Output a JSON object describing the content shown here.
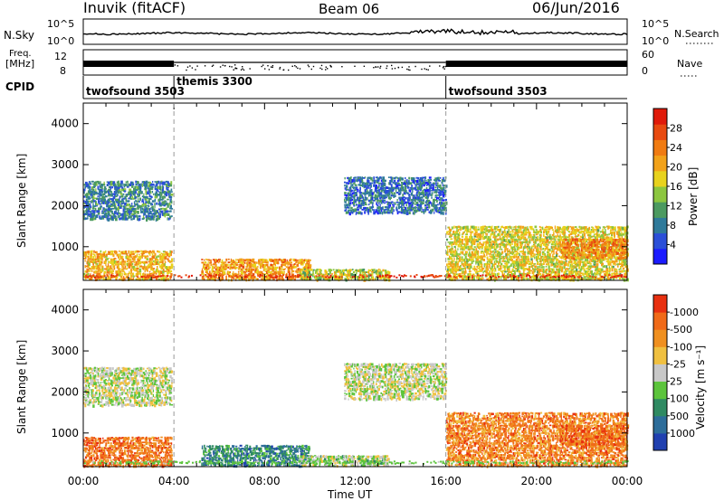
{
  "header": {
    "station": "Inuvik (fitACF)",
    "beam": "Beam 06",
    "date": "06/Jun/2016"
  },
  "strip_panels": {
    "nsky_label": "N.Sky",
    "nsky_ticks": [
      "10^5",
      "10^0"
    ],
    "nsearch_label": "N.Search",
    "nsearch_ticks": [
      "10^5",
      "10^0"
    ],
    "freq_label_top": "Freq.",
    "freq_label_bottom": "[MHz]",
    "freq_ticks": [
      "12",
      "8"
    ],
    "nave_label": "Nave",
    "nave_ticks": [
      "60",
      "0"
    ],
    "cpid_label": "CPID",
    "cpid_segments": [
      {
        "name": "twofsound 3503",
        "start_hour": 0,
        "end_hour": 4
      },
      {
        "name": "themis 3300",
        "start_hour": 4,
        "end_hour": 16
      },
      {
        "name": "twofsound 3503",
        "start_hour": 16,
        "end_hour": 24
      }
    ]
  },
  "chart_data": [
    {
      "type": "heatmap",
      "title": "Power",
      "xlabel": "Time UT",
      "ylabel": "Slant Range [km]",
      "x_tick_labels": [
        "00:00",
        "04:00",
        "08:00",
        "12:00",
        "16:00",
        "20:00",
        "00:00"
      ],
      "x_range_hours": [
        0,
        24
      ],
      "y_tick_labels": [
        "1000",
        "2000",
        "3000",
        "4000"
      ],
      "y_range_km": [
        180,
        4500
      ],
      "colorbar": {
        "label": "Power [dB]",
        "ticks": [
          "4",
          "8",
          "12",
          "16",
          "20",
          "24",
          "28"
        ],
        "colors": [
          "#1b1bff",
          "#2b4fd8",
          "#2f7a9a",
          "#4c9a60",
          "#8cc63f",
          "#e8d21d",
          "#f2a21a",
          "#f07b12",
          "#e84a10",
          "#e01a0a"
        ]
      },
      "echo_regions": [
        {
          "t0": 0.0,
          "t1": 3.9,
          "r0": 1650,
          "r1": 2600,
          "level": 0.25
        },
        {
          "t0": 0.0,
          "t1": 3.9,
          "r0": 180,
          "r1": 900,
          "level": 0.65
        },
        {
          "t0": 5.2,
          "t1": 10.0,
          "r0": 180,
          "r1": 700,
          "level": 0.7
        },
        {
          "t0": 9.5,
          "t1": 13.5,
          "r0": 180,
          "r1": 450,
          "level": 0.5
        },
        {
          "t0": 11.5,
          "t1": 16.0,
          "r0": 1800,
          "r1": 2700,
          "level": 0.2
        },
        {
          "t0": 16.0,
          "t1": 24.0,
          "r0": 180,
          "r1": 1500,
          "level": 0.55
        },
        {
          "t0": 21.0,
          "t1": 24.0,
          "r0": 700,
          "r1": 1200,
          "level": 0.75
        }
      ]
    },
    {
      "type": "heatmap",
      "title": "Velocity",
      "xlabel": "Time UT",
      "ylabel": "Slant Range [km]",
      "x_tick_labels": [
        "00:00",
        "04:00",
        "08:00",
        "12:00",
        "16:00",
        "20:00",
        "00:00"
      ],
      "x_range_hours": [
        0,
        24
      ],
      "y_tick_labels": [
        "1000",
        "2000",
        "3000",
        "4000"
      ],
      "y_range_km": [
        180,
        4500
      ],
      "colorbar": {
        "label": "Velocity [m s⁻¹]",
        "ticks": [
          "1000",
          "500",
          "100",
          "25",
          "-25",
          "-100",
          "-500",
          "-1000"
        ],
        "colors": [
          "#2040b0",
          "#2d6d9a",
          "#2f8a62",
          "#5cc43c",
          "#c8c8c8",
          "#f0c040",
          "#f09020",
          "#f06a18",
          "#e83010"
        ]
      },
      "echo_regions": [
        {
          "t0": 0.0,
          "t1": 3.9,
          "r0": 1650,
          "r1": 2600,
          "level": 0.5
        },
        {
          "t0": 0.0,
          "t1": 3.9,
          "r0": 180,
          "r1": 900,
          "level": 0.85
        },
        {
          "t0": 5.2,
          "t1": 10.0,
          "r0": 180,
          "r1": 700,
          "level": 0.2
        },
        {
          "t0": 9.5,
          "t1": 13.5,
          "r0": 180,
          "r1": 450,
          "level": 0.45
        },
        {
          "t0": 11.5,
          "t1": 16.0,
          "r0": 1800,
          "r1": 2700,
          "level": 0.5
        },
        {
          "t0": 16.0,
          "t1": 24.0,
          "r0": 180,
          "r1": 1500,
          "level": 0.8
        },
        {
          "t0": 21.0,
          "t1": 24.0,
          "r0": 700,
          "r1": 1200,
          "level": 0.85
        }
      ]
    }
  ]
}
